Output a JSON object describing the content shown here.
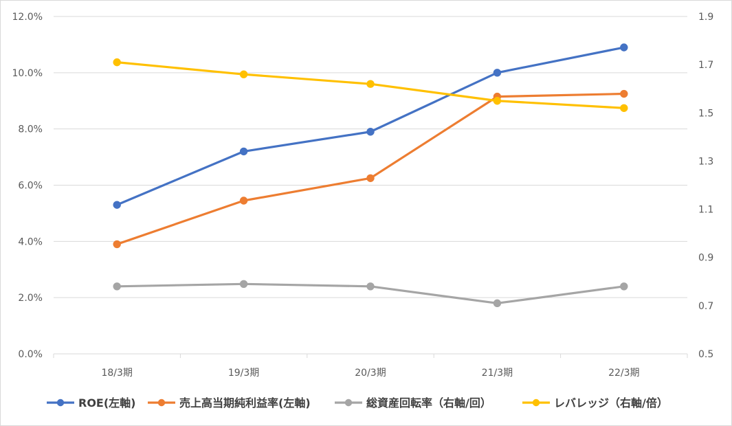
{
  "chart_data": {
    "type": "line",
    "categories": [
      "18/3期",
      "19/3期",
      "20/3期",
      "21/3期",
      "22/3期"
    ],
    "y_left": {
      "ticks": [
        "0.0%",
        "2.0%",
        "4.0%",
        "6.0%",
        "8.0%",
        "10.0%",
        "12.0%"
      ],
      "ylim": [
        0,
        12
      ],
      "unit": "%"
    },
    "y_right": {
      "ticks": [
        "0.5",
        "0.7",
        "0.9",
        "1.1",
        "1.3",
        "1.5",
        "1.7",
        "1.9"
      ],
      "ylim": [
        0.5,
        1.9
      ]
    },
    "grid": true,
    "legend_position": "bottom",
    "series": [
      {
        "name": "ROE(左軸)",
        "axis": "left",
        "color": "#4472C4",
        "values": [
          5.3,
          7.2,
          7.9,
          10.0,
          10.9
        ]
      },
      {
        "name": "売上高当期純利益率(左軸)",
        "axis": "left",
        "color": "#ED7D31",
        "values": [
          3.9,
          5.45,
          6.25,
          9.15,
          9.25
        ]
      },
      {
        "name": "総資産回転率（右軸/回）",
        "axis": "right",
        "color": "#A5A5A5",
        "values": [
          0.78,
          0.79,
          0.78,
          0.71,
          0.78
        ]
      },
      {
        "name": "レバレッジ（右軸/倍）",
        "axis": "right",
        "color": "#FFC000",
        "values": [
          1.71,
          1.66,
          1.62,
          1.55,
          1.52
        ]
      }
    ]
  }
}
